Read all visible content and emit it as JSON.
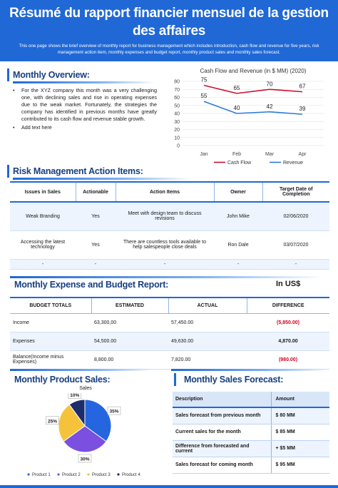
{
  "header": {
    "title": "Résumé du rapport financier mensuel de la gestion des affaires",
    "subtitle": "This one page shows the brief overview of monthly report for business management which includes introduction, cash flow and revenue for five years, risk management action item, monthly expenses and budget report, monthly product sales and monthly sales forecast."
  },
  "overview": {
    "title": "Monthly Overview:",
    "bullets": [
      "For the XYZ company this month was a very challenging one, with declining sales and rise in operating expenses due to the weak market. Fortunately, the strategies the company has identified in previous months have greatly contributed to its cash flow and revenue stable growth.",
      "Add text here"
    ]
  },
  "chart_data": [
    {
      "type": "line",
      "title": "Cash Flow and Revenue (in $ MM) (2020)",
      "categories": [
        "Jan",
        "Feb",
        "Mar",
        "Apr"
      ],
      "ylim": [
        0,
        80
      ],
      "yticks": [
        "0",
        "10",
        "20",
        "30",
        "40",
        "50",
        "60",
        "70",
        "80"
      ],
      "series": [
        {
          "name": "Cash Flow",
          "values": [
            75,
            65,
            70,
            67
          ],
          "color": "#c8102e"
        },
        {
          "name": "Revenue",
          "values": [
            55,
            40,
            42,
            39
          ],
          "color": "#2b7bd6"
        }
      ],
      "legend": "bottom",
      "grid": "horizontal"
    },
    {
      "type": "pie",
      "title": "Sales",
      "series": [
        {
          "name": "Product 1",
          "value": 35,
          "label": "35%",
          "color": "#2566e0"
        },
        {
          "name": "Product 2",
          "value": 30,
          "label": "30%",
          "color": "#7b4fe0"
        },
        {
          "name": "Product 3",
          "value": 25,
          "label": "25%",
          "color": "#f5c33b"
        },
        {
          "name": "Product 4",
          "value": 10,
          "label": "10%",
          "color": "#1b2d6b"
        }
      ],
      "legend": "bottom"
    }
  ],
  "risk": {
    "title": "Risk Management Action Items:",
    "headers": [
      "Issues in Sales",
      "Actionable",
      "Action Items",
      "Owner",
      "Target Date of Completion"
    ],
    "rows": [
      [
        "Weak Branding",
        "Yes",
        "Meet with design team to discuss revisions",
        "John Mike",
        "02/06/2020"
      ],
      [
        "Accessing the latest technology",
        "Yes",
        "There are countless tools available to help salespeople close deals",
        "Ron Dale",
        "03/07/2020"
      ],
      [
        "-",
        "-",
        "-",
        "-",
        "-"
      ]
    ]
  },
  "expense": {
    "title": "Monthly Expense and Budget Report:",
    "currency": "In US$",
    "headers": [
      "BUDGET TOTALS",
      "ESTIMATED",
      "ACTUAL",
      "DIFFERENCE"
    ],
    "rows": [
      [
        "Income",
        "63,300,00",
        "57,450.00",
        "(5,850.00)"
      ],
      [
        "Expenses",
        "54,500.00",
        "49,630.00",
        "4,870.00"
      ],
      [
        "Balance(Income minus Expenses)",
        "8,800.00",
        "7,820.00",
        "(980.00)"
      ]
    ]
  },
  "sales": {
    "title": "Monthly Product Sales:"
  },
  "forecast": {
    "title": "Monthly Sales Forecast:",
    "headers": [
      "Description",
      "Amount"
    ],
    "rows": [
      [
        "Sales forecast from previous month",
        "$ 80 MM"
      ],
      [
        "Current sales for the month",
        "$ 85 MM"
      ],
      [
        "Difference from forecasted and current",
        "+ $5 MM"
      ],
      [
        "Sales forecast for coming month",
        "$ 95 MM"
      ]
    ]
  },
  "colors": {
    "brand": "#1f68d6",
    "title_text": "#173f80",
    "negative": "#d2001e"
  }
}
